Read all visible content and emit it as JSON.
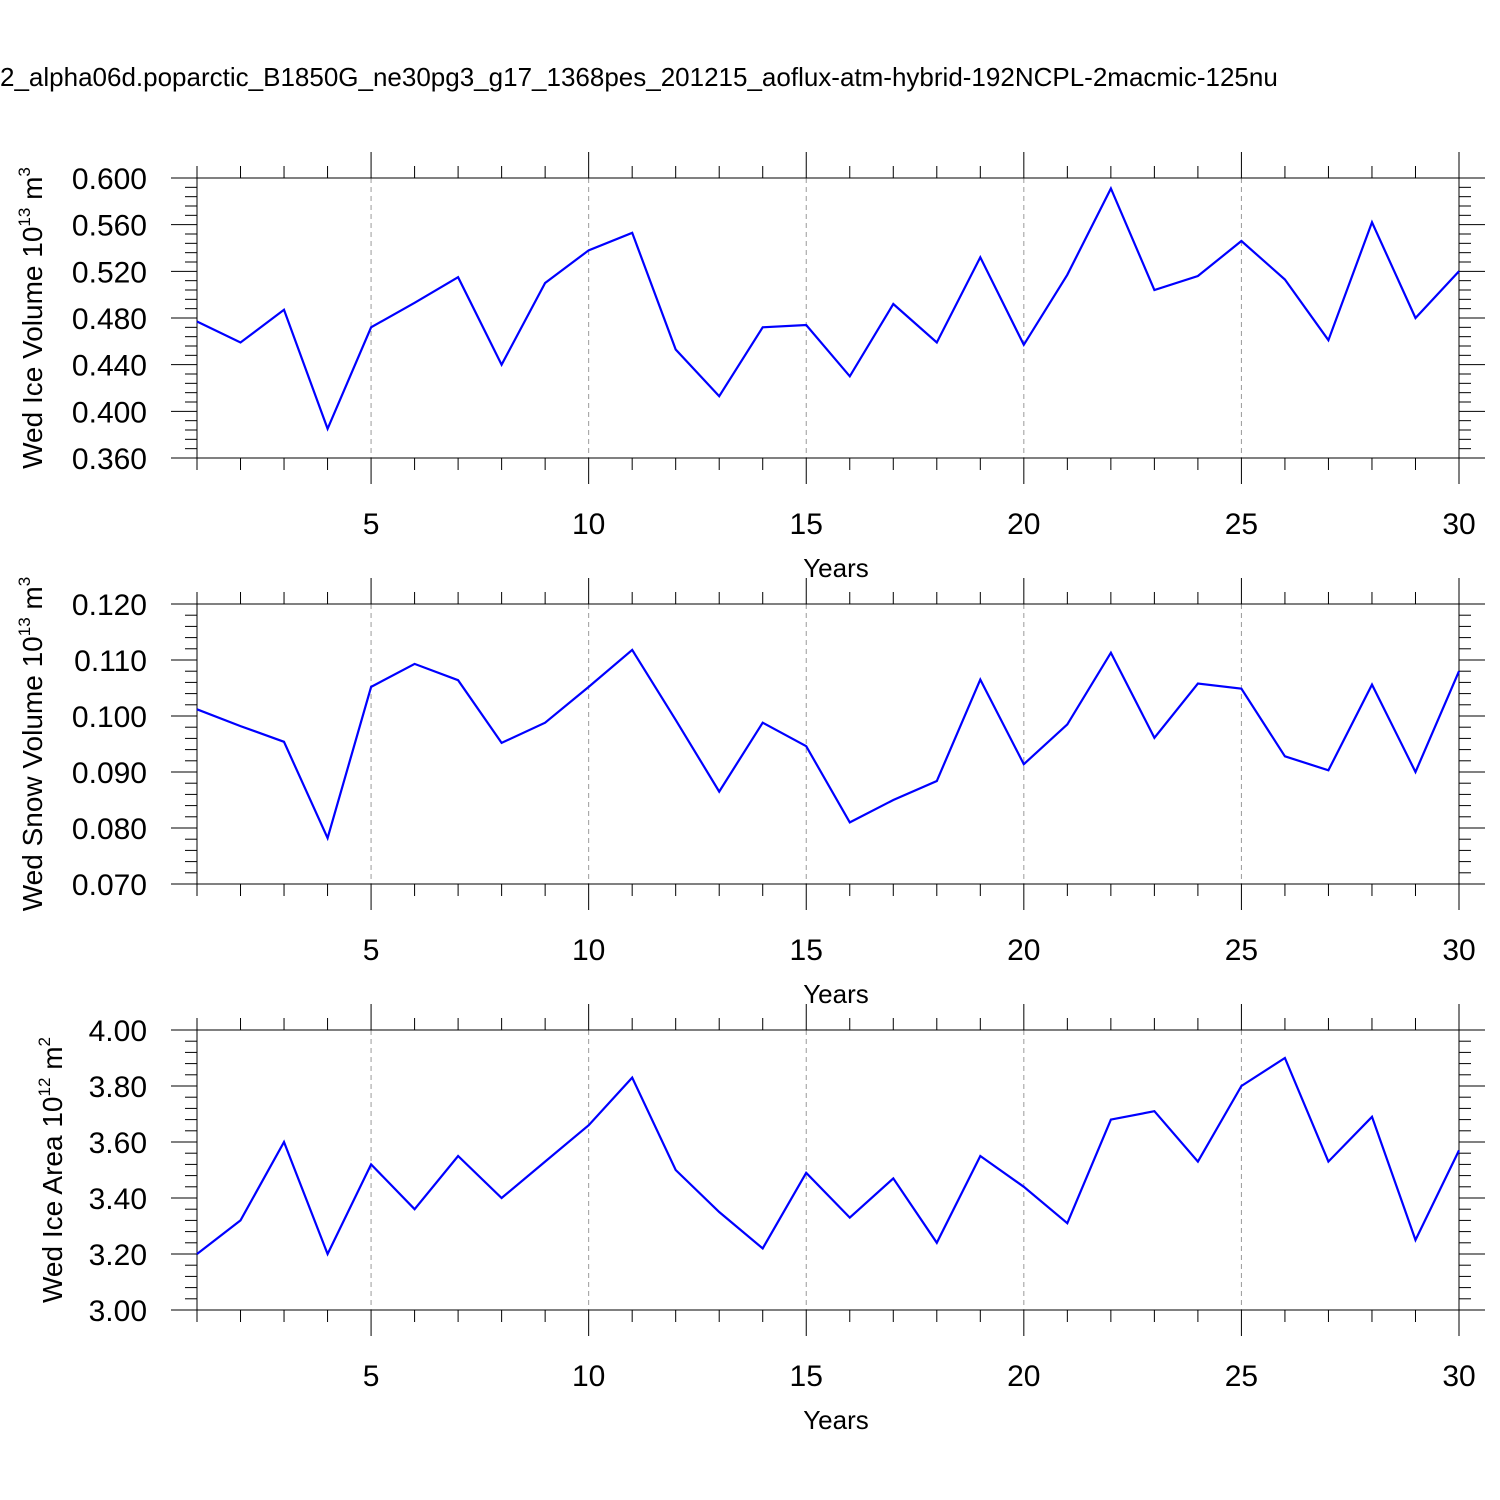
{
  "figure": {
    "title": "2_alpha06d.poparctic_B1850G_ne30pg3_g17_1368pes_201215_aoflux-atm-hybrid-192NCPL-2macmic-125nu"
  },
  "chart_data": [
    {
      "type": "line",
      "title": "",
      "xlabel": "Years",
      "ylabel": "Wed Ice Volume 10",
      "ylabel_exponent": "13",
      "ylabel_unit": "m",
      "ylabel_unit_exponent": "3",
      "xlim": [
        1,
        30
      ],
      "ylim": [
        0.36,
        0.6
      ],
      "x_ticks": [
        5,
        10,
        15,
        20,
        25,
        30
      ],
      "x_tick_labels": [
        "5",
        "10",
        "15",
        "20",
        "25",
        "30"
      ],
      "y_ticks": [
        0.36,
        0.4,
        0.44,
        0.48,
        0.52,
        0.56,
        0.6
      ],
      "y_tick_labels": [
        "0.360",
        "0.400",
        "0.440",
        "0.480",
        "0.520",
        "0.560",
        "0.600"
      ],
      "grid": "vertical dashed at major x ticks",
      "color": "#0000ff",
      "x": [
        1,
        2,
        3,
        4,
        5,
        6,
        7,
        8,
        9,
        10,
        11,
        12,
        13,
        14,
        15,
        16,
        17,
        18,
        19,
        20,
        21,
        22,
        23,
        24,
        25,
        26,
        27,
        28,
        29,
        30
      ],
      "values": [
        0.477,
        0.459,
        0.487,
        0.385,
        0.472,
        0.493,
        0.515,
        0.44,
        0.51,
        0.538,
        0.553,
        0.453,
        0.413,
        0.472,
        0.474,
        0.43,
        0.492,
        0.459,
        0.532,
        0.457,
        0.517,
        0.591,
        0.504,
        0.516,
        0.546,
        0.513,
        0.461,
        0.562,
        0.48,
        0.52
      ]
    },
    {
      "type": "line",
      "title": "",
      "xlabel": "Years",
      "ylabel": "Wed Snow Volume 10",
      "ylabel_exponent": "13",
      "ylabel_unit": "m",
      "ylabel_unit_exponent": "3",
      "xlim": [
        1,
        30
      ],
      "ylim": [
        0.07,
        0.12
      ],
      "x_ticks": [
        5,
        10,
        15,
        20,
        25,
        30
      ],
      "x_tick_labels": [
        "5",
        "10",
        "15",
        "20",
        "25",
        "30"
      ],
      "y_ticks": [
        0.07,
        0.08,
        0.09,
        0.1,
        0.11,
        0.12
      ],
      "y_tick_labels": [
        "0.070",
        "0.080",
        "0.090",
        "0.100",
        "0.110",
        "0.120"
      ],
      "grid": "vertical dashed at major x ticks",
      "color": "#0000ff",
      "x": [
        1,
        2,
        3,
        4,
        5,
        6,
        7,
        8,
        9,
        10,
        11,
        12,
        13,
        14,
        15,
        16,
        17,
        18,
        19,
        20,
        21,
        22,
        23,
        24,
        25,
        26,
        27,
        28,
        29,
        30
      ],
      "values": [
        0.1012,
        0.0982,
        0.0954,
        0.0782,
        0.1052,
        0.1093,
        0.1064,
        0.0952,
        0.0988,
        0.1052,
        0.1118,
        0.0993,
        0.0865,
        0.0988,
        0.0946,
        0.081,
        0.085,
        0.0884,
        0.1065,
        0.0914,
        0.0985,
        0.1113,
        0.0961,
        0.1058,
        0.1049,
        0.0928,
        0.0903,
        0.1056,
        0.09,
        0.108
      ]
    },
    {
      "type": "line",
      "title": "",
      "xlabel": "Years",
      "ylabel": "Wed Ice Area 10",
      "ylabel_exponent": "12",
      "ylabel_unit": "m",
      "ylabel_unit_exponent": "2",
      "xlim": [
        1,
        30
      ],
      "ylim": [
        3.0,
        4.0
      ],
      "x_ticks": [
        5,
        10,
        15,
        20,
        25,
        30
      ],
      "x_tick_labels": [
        "5",
        "10",
        "15",
        "20",
        "25",
        "30"
      ],
      "y_ticks": [
        3.0,
        3.2,
        3.4,
        3.6,
        3.8,
        4.0
      ],
      "y_tick_labels": [
        "3.00",
        "3.20",
        "3.40",
        "3.60",
        "3.80",
        "4.00"
      ],
      "grid": "vertical dashed at major x ticks",
      "color": "#0000ff",
      "x": [
        1,
        2,
        3,
        4,
        5,
        6,
        7,
        8,
        9,
        10,
        11,
        12,
        13,
        14,
        15,
        16,
        17,
        18,
        19,
        20,
        21,
        22,
        23,
        24,
        25,
        26,
        27,
        28,
        29,
        30
      ],
      "values": [
        3.2,
        3.32,
        3.6,
        3.2,
        3.52,
        3.36,
        3.55,
        3.4,
        3.53,
        3.66,
        3.83,
        3.5,
        3.35,
        3.22,
        3.49,
        3.33,
        3.47,
        3.24,
        3.55,
        3.44,
        3.31,
        3.68,
        3.71,
        3.53,
        3.8,
        3.9,
        3.53,
        3.69,
        3.25,
        3.57
      ]
    }
  ]
}
